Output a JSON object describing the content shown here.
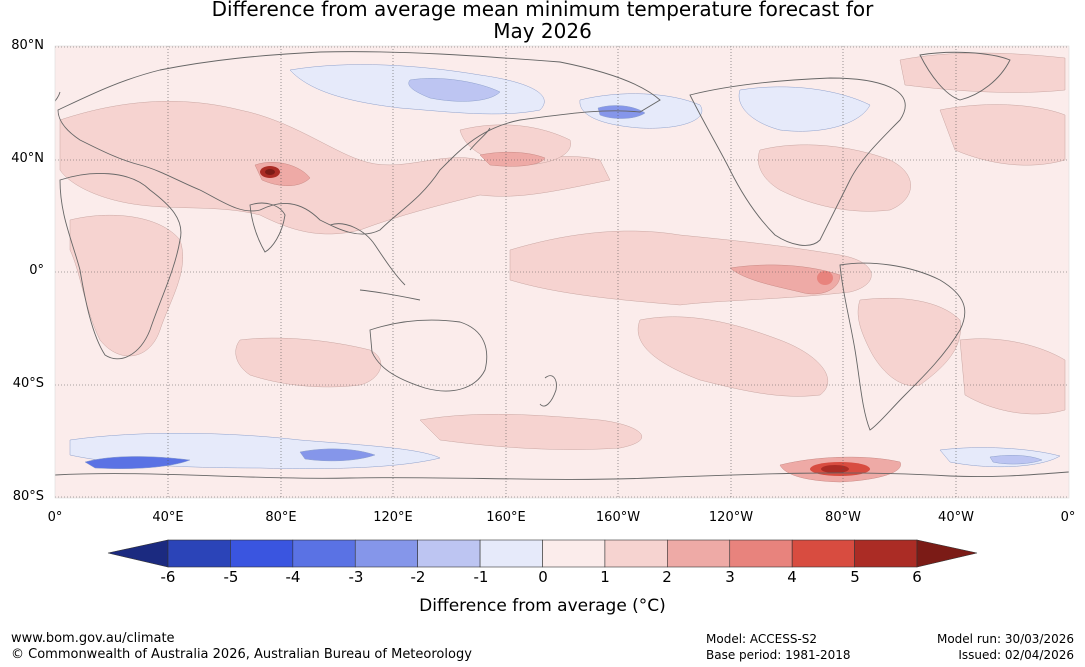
{
  "title": {
    "line1": "Difference from average mean minimum temperature forecast for",
    "line2": "May 2026"
  },
  "map": {
    "lat_labels": [
      "80°N",
      "40°N",
      "0°",
      "40°S",
      "80°S"
    ],
    "lon_labels": [
      "0°",
      "40°E",
      "80°E",
      "120°E",
      "160°E",
      "160°W",
      "120°W",
      "80°W",
      "40°W",
      "0°"
    ],
    "colors": {
      "background": "#fbeceb",
      "land_outline": "#666666",
      "grid": "#555555"
    }
  },
  "colorbar": {
    "ticks": [
      "-6",
      "-5",
      "-4",
      "-3",
      "-2",
      "-1",
      "0",
      "1",
      "2",
      "3",
      "4",
      "5",
      "6"
    ],
    "colors": [
      "#1b2a80",
      "#2b44b8",
      "#3a55e0",
      "#5a72e4",
      "#8596ea",
      "#bdc5f2",
      "#e6eafa",
      "#fbeceb",
      "#f6d3d0",
      "#eeaaa6",
      "#e8837d",
      "#d84c40",
      "#ab2c25",
      "#7b1b16"
    ],
    "label": "Difference from average (°C)"
  },
  "footer": {
    "website": "www.bom.gov.au/climate",
    "copyright": "© Commonwealth of Australia 2026, Australian Bureau of Meteorology",
    "model": "Model: ACCESS-S2",
    "base_period": "Base period: 1981-2018",
    "model_run": "Model run: 30/03/2026",
    "issued": "Issued: 02/04/2026"
  }
}
